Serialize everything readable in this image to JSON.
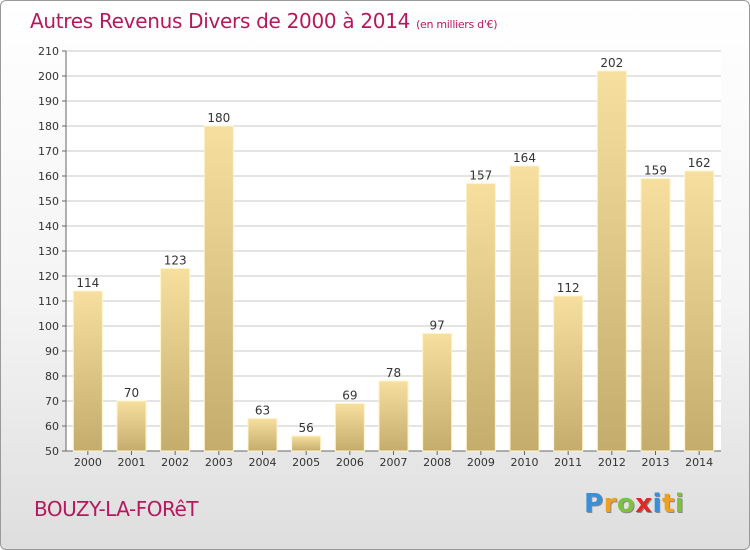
{
  "header": {
    "title": "Autres Revenus Divers de 2000 à 2014",
    "unit": "(en milliers d'€)"
  },
  "footer": {
    "location": "BOUZY-LA-FORêT",
    "brand": [
      "P",
      "r",
      "o",
      "x",
      "i",
      "t",
      "i"
    ],
    "brand_colors": [
      "#3a8fd8",
      "#f0a020",
      "#80c040",
      "#e02828",
      "#3a8fd8",
      "#f0a020",
      "#80c040"
    ]
  },
  "colors": {
    "title": "#b5195d",
    "bar_light": "#f6df9f",
    "bar_dark": "#c4ac6c",
    "grid": "#c8c8c8"
  },
  "chart_data": {
    "type": "bar",
    "title": "Autres Revenus Divers de 2000 à 2014",
    "subtitle": "(en milliers d'€)",
    "categories": [
      "2000",
      "2001",
      "2002",
      "2003",
      "2004",
      "2005",
      "2006",
      "2007",
      "2008",
      "2009",
      "2010",
      "2011",
      "2012",
      "2013",
      "2014"
    ],
    "values": [
      114,
      70,
      123,
      180,
      63,
      56,
      69,
      78,
      97,
      157,
      164,
      112,
      202,
      159,
      162
    ],
    "ylim": [
      50,
      210
    ],
    "yticks": [
      50,
      60,
      70,
      80,
      90,
      100,
      110,
      120,
      130,
      140,
      150,
      160,
      170,
      180,
      190,
      200,
      210
    ],
    "grid": true,
    "legend": "none"
  }
}
